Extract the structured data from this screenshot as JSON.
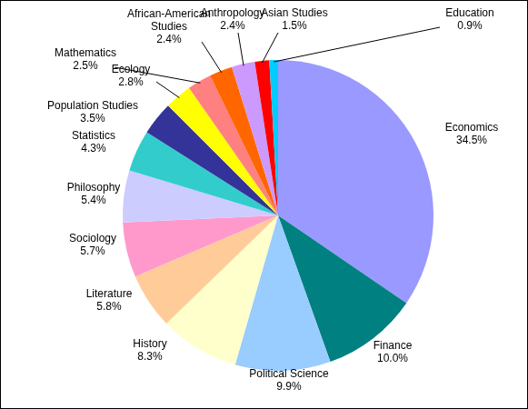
{
  "chart_data": {
    "type": "pie",
    "categories": [
      "Economics",
      "Finance",
      "Political Science",
      "History",
      "Literature",
      "Sociology",
      "Philosophy",
      "Statistics",
      "Population Studies",
      "Ecology",
      "Mathematics",
      "African-American Studies",
      "Anthropology",
      "Asian Studies",
      "Education"
    ],
    "values": [
      34.5,
      10.0,
      9.9,
      8.3,
      5.8,
      5.7,
      5.4,
      4.3,
      3.5,
      2.8,
      2.5,
      2.4,
      2.4,
      1.5,
      0.9
    ],
    "value_labels": [
      "34.5%",
      "10.0%",
      "9.9%",
      "8.3%",
      "5.8%",
      "5.7%",
      "5.4%",
      "4.3%",
      "3.5%",
      "2.8%",
      "2.5%",
      "2.4%",
      "2.4%",
      "1.5%",
      "0.9%"
    ],
    "colors": [
      "#9999ff",
      "#008080",
      "#99ccff",
      "#ffffcc",
      "#ffcc99",
      "#ff99cc",
      "#ccccff",
      "#33cccc",
      "#333399",
      "#ffff00",
      "#ff8080",
      "#ff6600",
      "#cc99ff",
      "#ff0000",
      "#00ccff"
    ],
    "data_labels": true
  }
}
